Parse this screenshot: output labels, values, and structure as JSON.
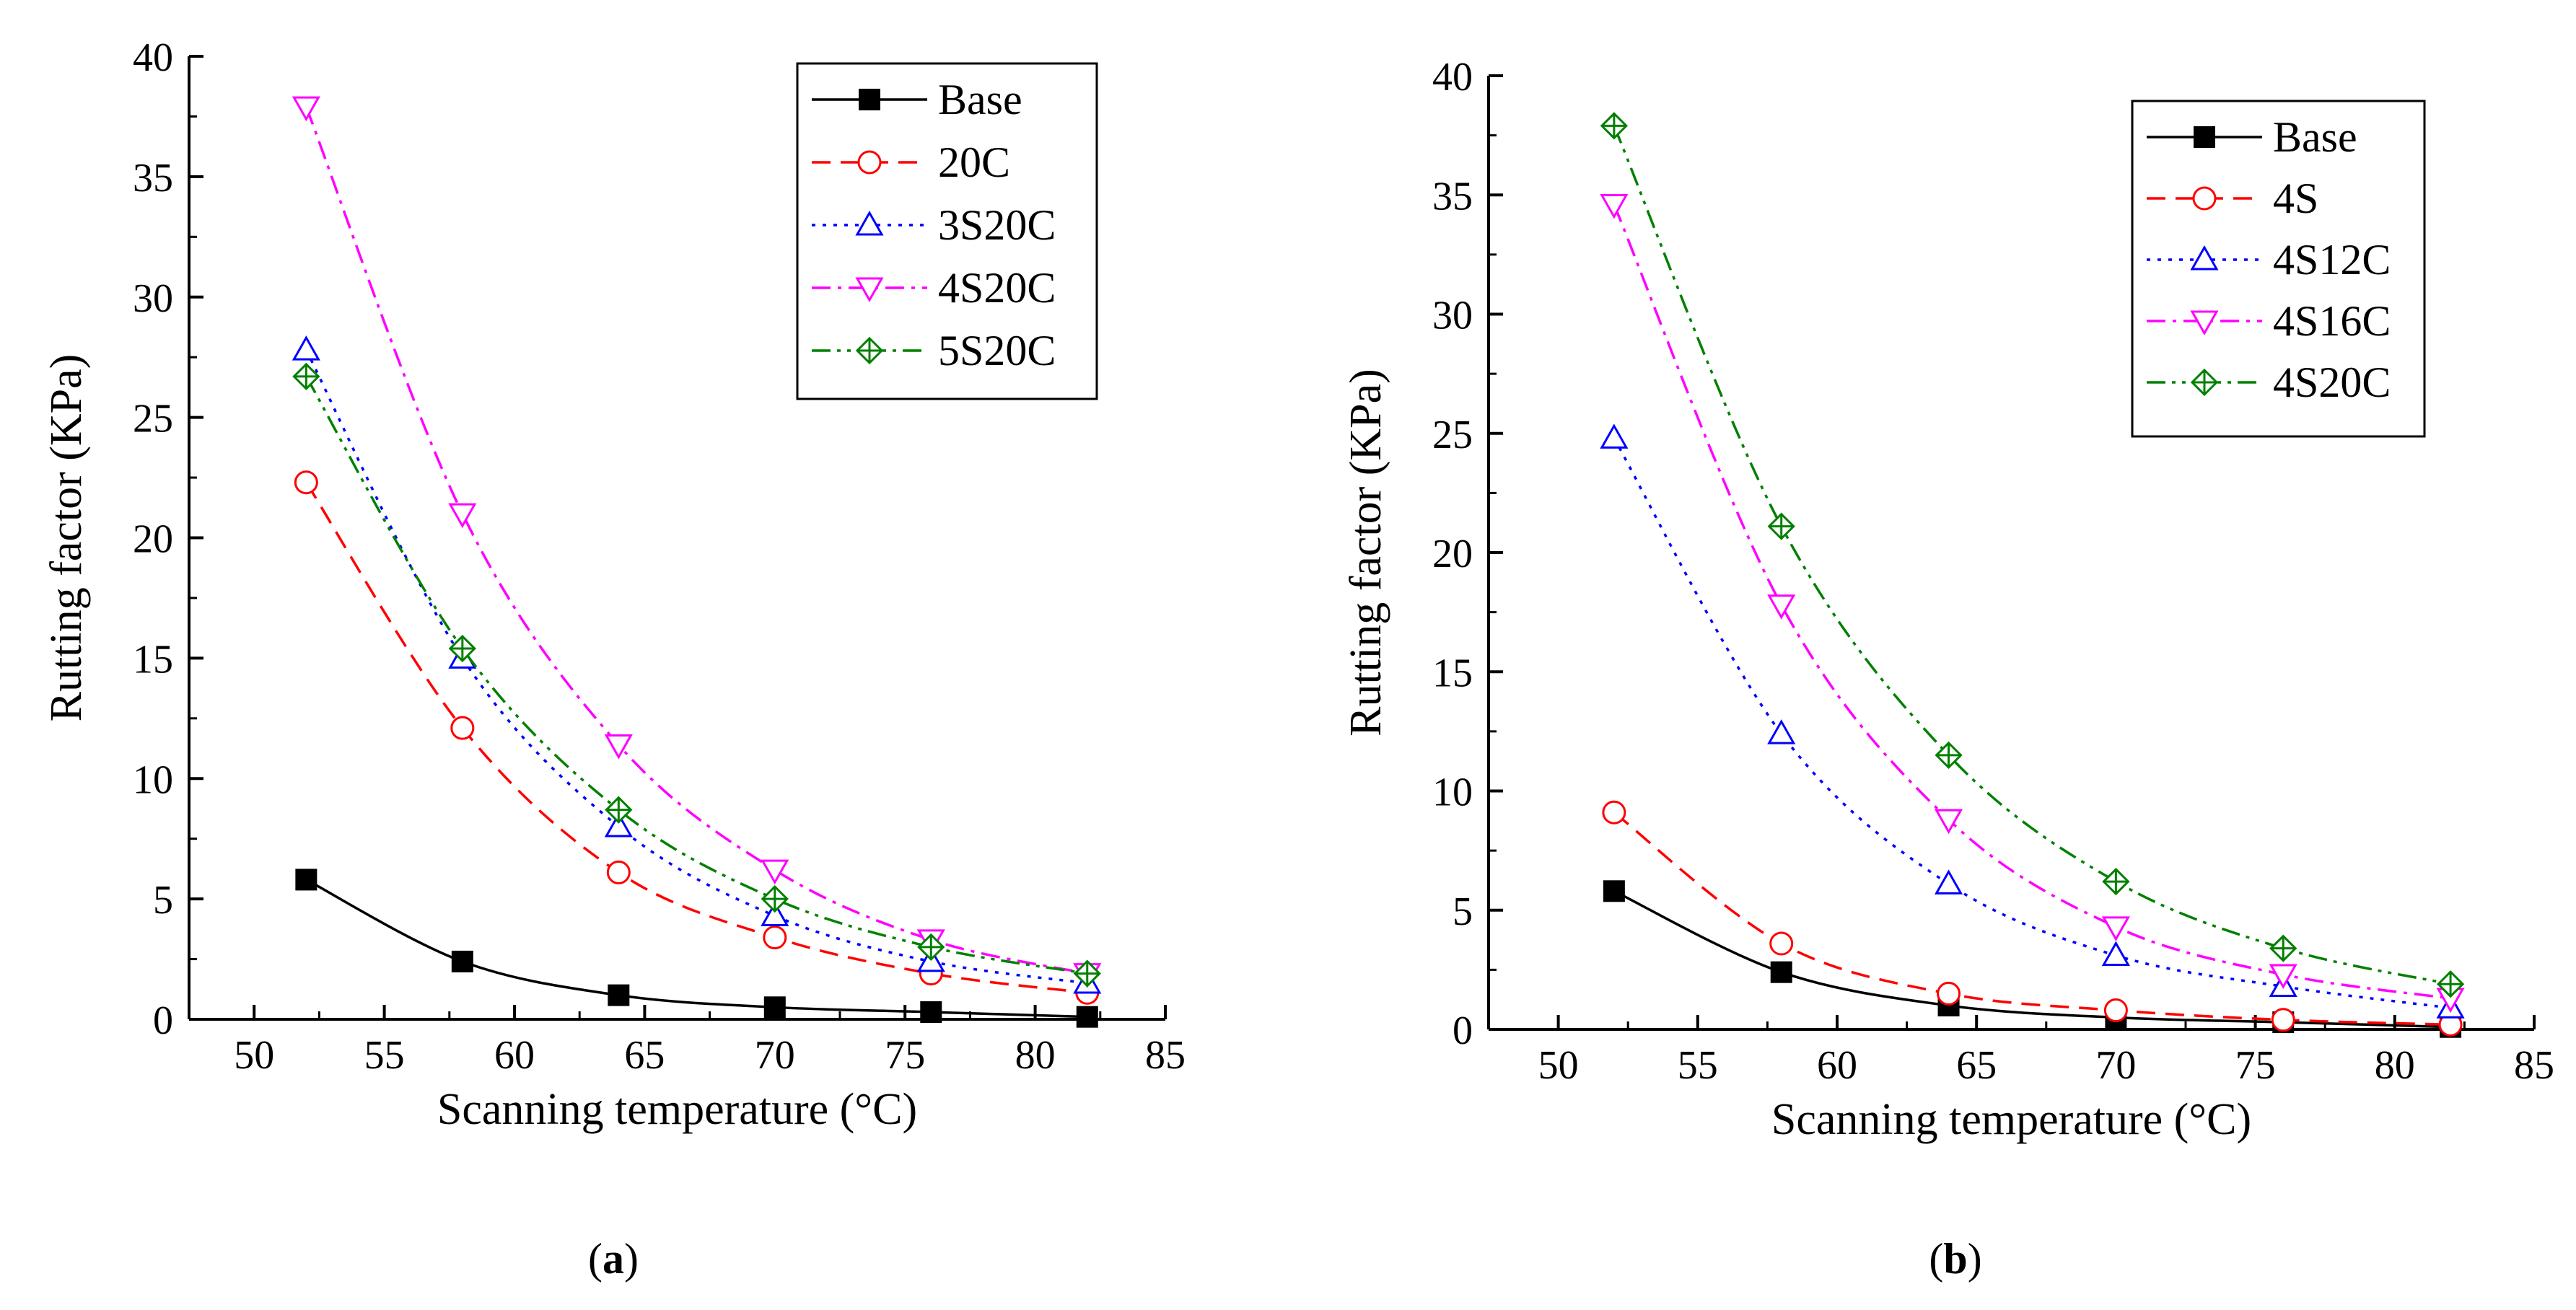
{
  "charts": [
    {
      "panel_label": "a",
      "legend_position": "top-right"
    },
    {
      "panel_label": "b",
      "legend_position": "top-right"
    }
  ],
  "chart_data": [
    {
      "type": "line",
      "title": "",
      "xlabel": "Scanning temperature (°C)",
      "ylabel": "Rutting factor (KPa)",
      "xlim": [
        47.5,
        85
      ],
      "ylim": [
        0,
        40
      ],
      "xticks": [
        50,
        55,
        60,
        65,
        70,
        75,
        80,
        85
      ],
      "yticks": [
        0,
        5,
        10,
        15,
        20,
        25,
        30,
        35,
        40
      ],
      "grid": false,
      "x": [
        52,
        58,
        64,
        70,
        76,
        82
      ],
      "series": [
        {
          "name": "Base",
          "values": [
            5.8,
            2.4,
            1.0,
            0.5,
            0.3,
            0.1
          ],
          "color": "#000000",
          "dash": "solid",
          "marker": "square-filled"
        },
        {
          "name": "20C",
          "values": [
            22.3,
            12.1,
            6.1,
            3.4,
            1.9,
            1.1
          ],
          "color": "#ff0000",
          "dash": "dash",
          "marker": "circle"
        },
        {
          "name": "3S20C",
          "values": [
            27.8,
            15.0,
            8.0,
            4.3,
            2.4,
            1.5
          ],
          "color": "#0000ff",
          "dash": "dot",
          "marker": "triangle-up"
        },
        {
          "name": "4S20C",
          "values": [
            37.9,
            21.0,
            11.4,
            6.2,
            3.3,
            1.9
          ],
          "color": "#ff00ff",
          "dash": "dashdot",
          "marker": "triangle-down"
        },
        {
          "name": "5S20C",
          "values": [
            26.7,
            15.4,
            8.7,
            5.0,
            3.0,
            1.9
          ],
          "color": "#008000",
          "dash": "dashdotdot",
          "marker": "diamond-plus"
        }
      ]
    },
    {
      "type": "line",
      "title": "",
      "xlabel": "Scanning temperature (°C)",
      "ylabel": "Rutting factor (KPa)",
      "xlim": [
        47.5,
        85
      ],
      "ylim": [
        0,
        40
      ],
      "xticks": [
        50,
        55,
        60,
        65,
        70,
        75,
        80,
        85
      ],
      "yticks": [
        0,
        5,
        10,
        15,
        20,
        25,
        30,
        35,
        40
      ],
      "grid": false,
      "x": [
        52,
        58,
        64,
        70,
        76,
        82
      ],
      "series": [
        {
          "name": "Base",
          "values": [
            5.8,
            2.4,
            1.0,
            0.5,
            0.3,
            0.1
          ],
          "color": "#000000",
          "dash": "solid",
          "marker": "square-filled"
        },
        {
          "name": "4S",
          "values": [
            9.1,
            3.6,
            1.5,
            0.8,
            0.4,
            0.2
          ],
          "color": "#ff0000",
          "dash": "dash",
          "marker": "circle"
        },
        {
          "name": "4S12C",
          "values": [
            24.8,
            12.4,
            6.1,
            3.1,
            1.8,
            0.9
          ],
          "color": "#0000ff",
          "dash": "dot",
          "marker": "triangle-up"
        },
        {
          "name": "4S16C",
          "values": [
            34.6,
            17.8,
            8.8,
            4.3,
            2.3,
            1.3
          ],
          "color": "#ff00ff",
          "dash": "dashdot",
          "marker": "triangle-down"
        },
        {
          "name": "4S20C",
          "values": [
            37.9,
            21.1,
            11.5,
            6.2,
            3.4,
            1.9
          ],
          "color": "#008000",
          "dash": "dashdotdot",
          "marker": "diamond-plus"
        }
      ]
    }
  ]
}
